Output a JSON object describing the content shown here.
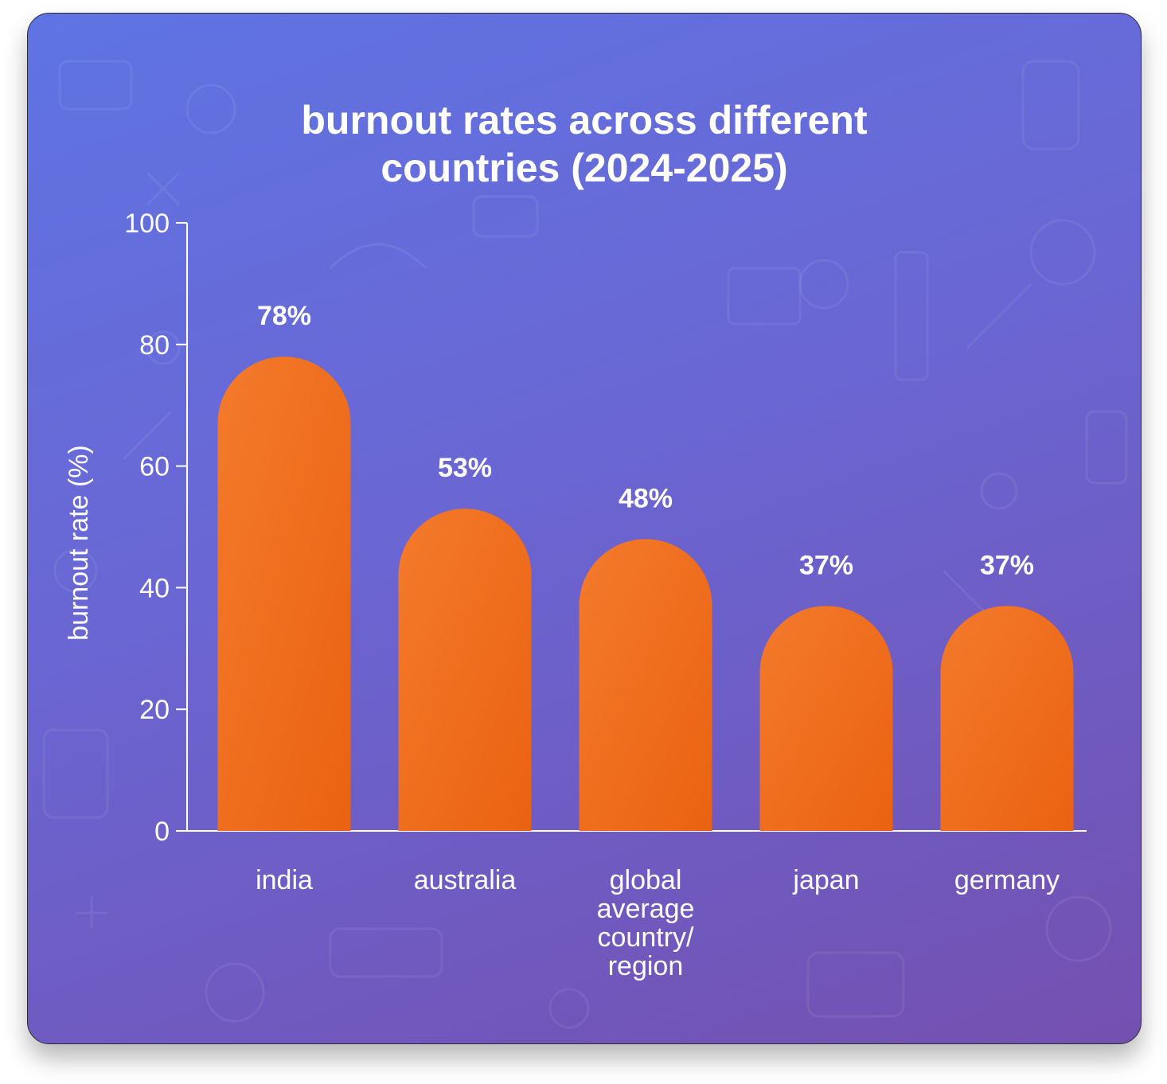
{
  "chart_data": {
    "type": "bar",
    "title_lines": [
      "burnout rates across different",
      "countries (2024-2025)"
    ],
    "xlabel": "",
    "ylabel": "burnout rate (%)",
    "ylim": [
      0,
      100
    ],
    "yticks": [
      0,
      20,
      40,
      60,
      80,
      100
    ],
    "categories": [
      [
        "india"
      ],
      [
        "australia"
      ],
      [
        "global",
        "average",
        "country/",
        "region"
      ],
      [
        "japan"
      ],
      [
        "germany"
      ]
    ],
    "values": [
      78,
      53,
      48,
      37,
      37
    ],
    "value_labels": [
      "78%",
      "53%",
      "48%",
      "37%",
      "37%"
    ],
    "grid": false,
    "legend": "none",
    "colors": {
      "bar_start": "#f47a2c",
      "bar_end": "#ea6211",
      "text": "#ffffff",
      "axis": "#ffffff"
    }
  }
}
